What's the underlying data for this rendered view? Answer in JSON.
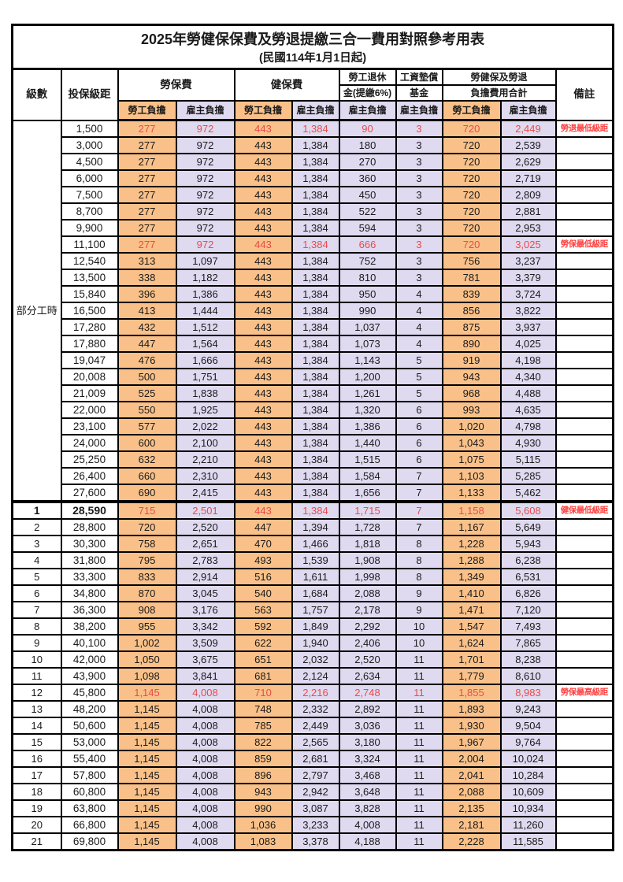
{
  "title": "2025年勞健保保費及勞退提繳三合一費用對照參考用表",
  "subtitle": "(民國114年1月1日起)",
  "columns": {
    "level": "級數",
    "bracket": "投保級距",
    "labor_fee": "勞保費",
    "health_fee": "健保費",
    "pension_line1": "勞工退休",
    "pension_line2": "金(提繳6%)",
    "wage_fund_line1": "工資墊償",
    "wage_fund_line2": "基金",
    "total_line1": "勞健保及勞退",
    "total_line2": "負擔費用合計",
    "remark": "備註",
    "employee_burden": "勞工負擔",
    "employer_burden": "雇主負擔"
  },
  "part_time_label": "部分工時",
  "part_time_row_count": 23,
  "colors": {
    "employee_bg": "#F9C189",
    "employer_bg": "#DFDAF0",
    "highlight_text": "#E84B4B",
    "remark_text": "#FF4040",
    "border": "#000000"
  },
  "rows": [
    {
      "level": "",
      "bracket": "1,500",
      "values": [
        "277",
        "972",
        "443",
        "1,384",
        "90",
        "3",
        "720",
        "2,449"
      ],
      "remark": "勞退最低級距",
      "red": true
    },
    {
      "level": "",
      "bracket": "3,000",
      "values": [
        "277",
        "972",
        "443",
        "1,384",
        "180",
        "3",
        "720",
        "2,539"
      ],
      "remark": ""
    },
    {
      "level": "",
      "bracket": "4,500",
      "values": [
        "277",
        "972",
        "443",
        "1,384",
        "270",
        "3",
        "720",
        "2,629"
      ],
      "remark": ""
    },
    {
      "level": "",
      "bracket": "6,000",
      "values": [
        "277",
        "972",
        "443",
        "1,384",
        "360",
        "3",
        "720",
        "2,719"
      ],
      "remark": ""
    },
    {
      "level": "",
      "bracket": "7,500",
      "values": [
        "277",
        "972",
        "443",
        "1,384",
        "450",
        "3",
        "720",
        "2,809"
      ],
      "remark": ""
    },
    {
      "level": "",
      "bracket": "8,700",
      "values": [
        "277",
        "972",
        "443",
        "1,384",
        "522",
        "3",
        "720",
        "2,881"
      ],
      "remark": ""
    },
    {
      "level": "",
      "bracket": "9,900",
      "values": [
        "277",
        "972",
        "443",
        "1,384",
        "594",
        "3",
        "720",
        "2,953"
      ],
      "remark": ""
    },
    {
      "level": "",
      "bracket": "11,100",
      "values": [
        "277",
        "972",
        "443",
        "1,384",
        "666",
        "3",
        "720",
        "3,025"
      ],
      "remark": "勞保最低級距",
      "red": true
    },
    {
      "level": "",
      "bracket": "12,540",
      "values": [
        "313",
        "1,097",
        "443",
        "1,384",
        "752",
        "3",
        "756",
        "3,237"
      ],
      "remark": ""
    },
    {
      "level": "",
      "bracket": "13,500",
      "values": [
        "338",
        "1,182",
        "443",
        "1,384",
        "810",
        "3",
        "781",
        "3,379"
      ],
      "remark": ""
    },
    {
      "level": "",
      "bracket": "15,840",
      "values": [
        "396",
        "1,386",
        "443",
        "1,384",
        "950",
        "4",
        "839",
        "3,724"
      ],
      "remark": ""
    },
    {
      "level": "",
      "bracket": "16,500",
      "values": [
        "413",
        "1,444",
        "443",
        "1,384",
        "990",
        "4",
        "856",
        "3,822"
      ],
      "remark": ""
    },
    {
      "level": "",
      "bracket": "17,280",
      "values": [
        "432",
        "1,512",
        "443",
        "1,384",
        "1,037",
        "4",
        "875",
        "3,937"
      ],
      "remark": ""
    },
    {
      "level": "",
      "bracket": "17,880",
      "values": [
        "447",
        "1,564",
        "443",
        "1,384",
        "1,073",
        "4",
        "890",
        "4,025"
      ],
      "remark": ""
    },
    {
      "level": "",
      "bracket": "19,047",
      "values": [
        "476",
        "1,666",
        "443",
        "1,384",
        "1,143",
        "5",
        "919",
        "4,198"
      ],
      "remark": ""
    },
    {
      "level": "",
      "bracket": "20,008",
      "values": [
        "500",
        "1,751",
        "443",
        "1,384",
        "1,200",
        "5",
        "943",
        "4,340"
      ],
      "remark": ""
    },
    {
      "level": "",
      "bracket": "21,009",
      "values": [
        "525",
        "1,838",
        "443",
        "1,384",
        "1,261",
        "5",
        "968",
        "4,488"
      ],
      "remark": ""
    },
    {
      "level": "",
      "bracket": "22,000",
      "values": [
        "550",
        "1,925",
        "443",
        "1,384",
        "1,320",
        "6",
        "993",
        "4,635"
      ],
      "remark": ""
    },
    {
      "level": "",
      "bracket": "23,100",
      "values": [
        "577",
        "2,022",
        "443",
        "1,384",
        "1,386",
        "6",
        "1,020",
        "4,798"
      ],
      "remark": ""
    },
    {
      "level": "",
      "bracket": "24,000",
      "values": [
        "600",
        "2,100",
        "443",
        "1,384",
        "1,440",
        "6",
        "1,043",
        "4,930"
      ],
      "remark": ""
    },
    {
      "level": "",
      "bracket": "25,250",
      "values": [
        "632",
        "2,210",
        "443",
        "1,384",
        "1,515",
        "6",
        "1,075",
        "5,115"
      ],
      "remark": ""
    },
    {
      "level": "",
      "bracket": "26,400",
      "values": [
        "660",
        "2,310",
        "443",
        "1,384",
        "1,584",
        "7",
        "1,103",
        "5,285"
      ],
      "remark": ""
    },
    {
      "level": "",
      "bracket": "27,600",
      "values": [
        "690",
        "2,415",
        "443",
        "1,384",
        "1,656",
        "7",
        "1,133",
        "5,462"
      ],
      "remark": ""
    },
    {
      "level": "1",
      "bracket": "28,590",
      "values": [
        "715",
        "2,501",
        "443",
        "1,384",
        "1,715",
        "7",
        "1,158",
        "5,608"
      ],
      "remark": "健保最低級距",
      "red": true,
      "bold": true,
      "section": true
    },
    {
      "level": "2",
      "bracket": "28,800",
      "values": [
        "720",
        "2,520",
        "447",
        "1,394",
        "1,728",
        "7",
        "1,167",
        "5,649"
      ],
      "remark": ""
    },
    {
      "level": "3",
      "bracket": "30,300",
      "values": [
        "758",
        "2,651",
        "470",
        "1,466",
        "1,818",
        "8",
        "1,228",
        "5,943"
      ],
      "remark": ""
    },
    {
      "level": "4",
      "bracket": "31,800",
      "values": [
        "795",
        "2,783",
        "493",
        "1,539",
        "1,908",
        "8",
        "1,288",
        "6,238"
      ],
      "remark": ""
    },
    {
      "level": "5",
      "bracket": "33,300",
      "values": [
        "833",
        "2,914",
        "516",
        "1,611",
        "1,998",
        "8",
        "1,349",
        "6,531"
      ],
      "remark": ""
    },
    {
      "level": "6",
      "bracket": "34,800",
      "values": [
        "870",
        "3,045",
        "540",
        "1,684",
        "2,088",
        "9",
        "1,410",
        "6,826"
      ],
      "remark": ""
    },
    {
      "level": "7",
      "bracket": "36,300",
      "values": [
        "908",
        "3,176",
        "563",
        "1,757",
        "2,178",
        "9",
        "1,471",
        "7,120"
      ],
      "remark": ""
    },
    {
      "level": "8",
      "bracket": "38,200",
      "values": [
        "955",
        "3,342",
        "592",
        "1,849",
        "2,292",
        "10",
        "1,547",
        "7,493"
      ],
      "remark": ""
    },
    {
      "level": "9",
      "bracket": "40,100",
      "values": [
        "1,002",
        "3,509",
        "622",
        "1,940",
        "2,406",
        "10",
        "1,624",
        "7,865"
      ],
      "remark": ""
    },
    {
      "level": "10",
      "bracket": "42,000",
      "values": [
        "1,050",
        "3,675",
        "651",
        "2,032",
        "2,520",
        "11",
        "1,701",
        "8,238"
      ],
      "remark": ""
    },
    {
      "level": "11",
      "bracket": "43,900",
      "values": [
        "1,098",
        "3,841",
        "681",
        "2,124",
        "2,634",
        "11",
        "1,779",
        "8,610"
      ],
      "remark": ""
    },
    {
      "level": "12",
      "bracket": "45,800",
      "values": [
        "1,145",
        "4,008",
        "710",
        "2,216",
        "2,748",
        "11",
        "1,855",
        "8,983"
      ],
      "remark": "勞保最高級距",
      "red": true
    },
    {
      "level": "13",
      "bracket": "48,200",
      "values": [
        "1,145",
        "4,008",
        "748",
        "2,332",
        "2,892",
        "11",
        "1,893",
        "9,243"
      ],
      "remark": ""
    },
    {
      "level": "14",
      "bracket": "50,600",
      "values": [
        "1,145",
        "4,008",
        "785",
        "2,449",
        "3,036",
        "11",
        "1,930",
        "9,504"
      ],
      "remark": ""
    },
    {
      "level": "15",
      "bracket": "53,000",
      "values": [
        "1,145",
        "4,008",
        "822",
        "2,565",
        "3,180",
        "11",
        "1,967",
        "9,764"
      ],
      "remark": ""
    },
    {
      "level": "16",
      "bracket": "55,400",
      "values": [
        "1,145",
        "4,008",
        "859",
        "2,681",
        "3,324",
        "11",
        "2,004",
        "10,024"
      ],
      "remark": ""
    },
    {
      "level": "17",
      "bracket": "57,800",
      "values": [
        "1,145",
        "4,008",
        "896",
        "2,797",
        "3,468",
        "11",
        "2,041",
        "10,284"
      ],
      "remark": ""
    },
    {
      "level": "18",
      "bracket": "60,800",
      "values": [
        "1,145",
        "4,008",
        "943",
        "2,942",
        "3,648",
        "11",
        "2,088",
        "10,609"
      ],
      "remark": ""
    },
    {
      "level": "19",
      "bracket": "63,800",
      "values": [
        "1,145",
        "4,008",
        "990",
        "3,087",
        "3,828",
        "11",
        "2,135",
        "10,934"
      ],
      "remark": ""
    },
    {
      "level": "20",
      "bracket": "66,800",
      "values": [
        "1,145",
        "4,008",
        "1,036",
        "3,233",
        "4,008",
        "11",
        "2,181",
        "11,260"
      ],
      "remark": ""
    },
    {
      "level": "21",
      "bracket": "69,800",
      "values": [
        "1,145",
        "4,008",
        "1,083",
        "3,378",
        "4,188",
        "11",
        "2,228",
        "11,585"
      ],
      "remark": ""
    }
  ]
}
